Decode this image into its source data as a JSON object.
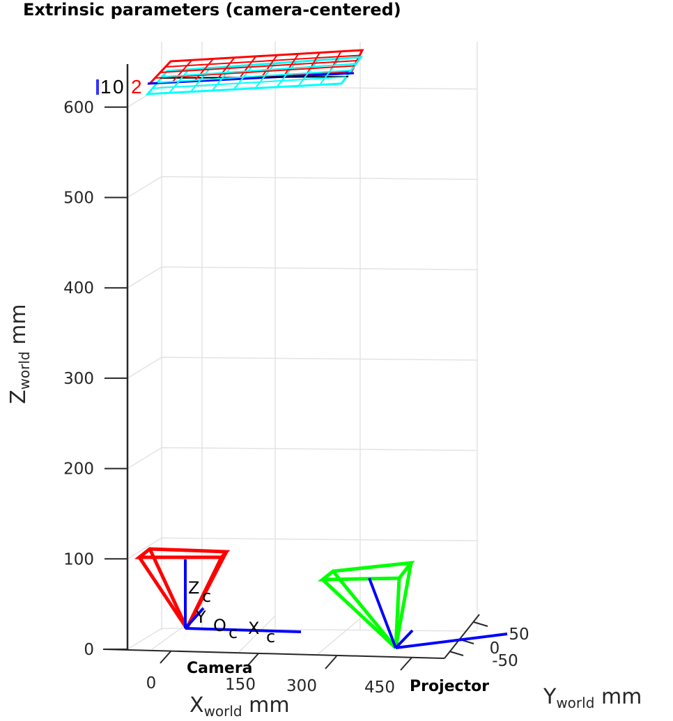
{
  "chart_data": {
    "type": "3d-line",
    "title": "Extrinsic parameters (camera-centered)",
    "xlabel": {
      "main": "X",
      "sub": "world",
      "unit": " mm"
    },
    "ylabel": {
      "main": "Y",
      "sub": "world",
      "unit": " mm"
    },
    "zlabel": {
      "main": "Z",
      "sub": "world",
      "unit": " mm"
    },
    "xticks": [
      "0",
      "150",
      "300",
      "450"
    ],
    "yticks": [
      "50",
      "0",
      "-50"
    ],
    "zticks": [
      "0",
      "100",
      "200",
      "300",
      "400",
      "500",
      "600"
    ],
    "zlim": [
      0,
      650
    ],
    "grid": true,
    "objects": [
      {
        "name": "Camera",
        "color": "#ff0000",
        "position_mm": [
          0,
          0,
          0
        ]
      },
      {
        "name": "Projector",
        "color": "#00ff00",
        "position_mm": [
          450,
          0,
          0
        ]
      }
    ],
    "camera_axes_labels": {
      "z": "Z",
      "y": "Y",
      "o": "O",
      "x": "X",
      "sub": "c"
    },
    "pattern_labels": [
      "1",
      "0",
      "2"
    ],
    "pattern_colors": [
      "#ff0000",
      "#00ffff",
      "#0000ff",
      "#000000",
      "#ff00ff",
      "#00ff00"
    ],
    "pattern_depth_mm": 620,
    "axis_color": "#0000ff"
  }
}
